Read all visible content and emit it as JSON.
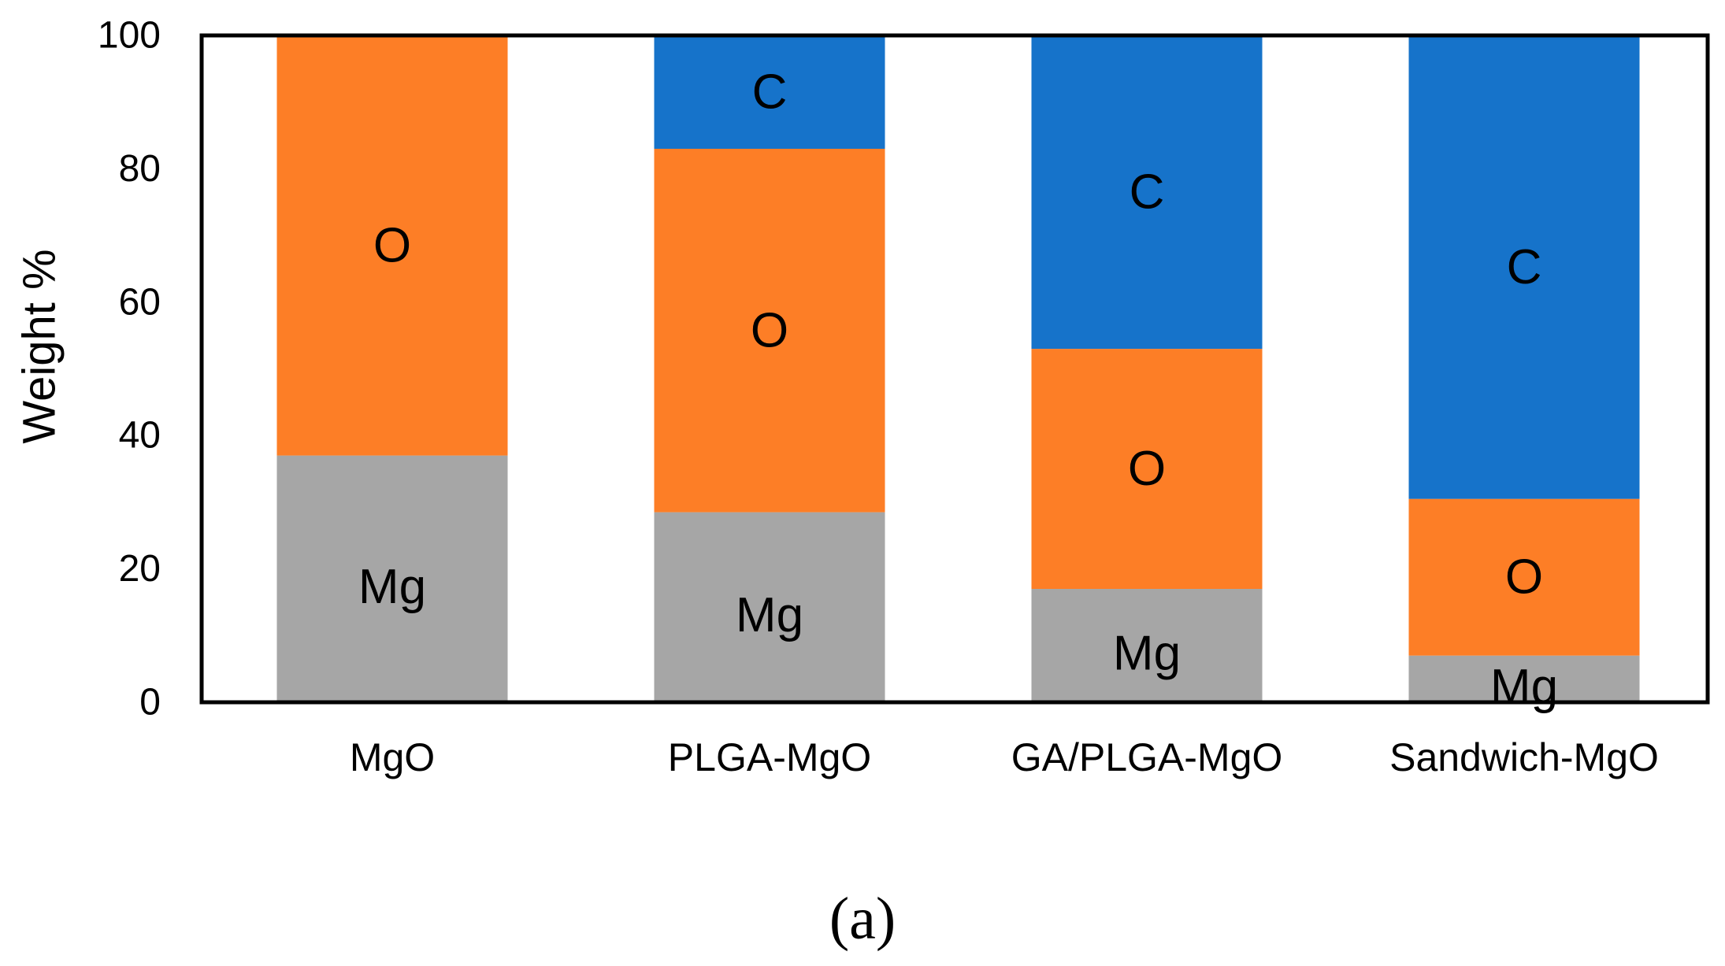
{
  "chart_data": {
    "type": "bar",
    "stacked": true,
    "title": "",
    "xlabel": "",
    "ylabel": "Weight %",
    "ylim": [
      0,
      100
    ],
    "yticks": [
      "0",
      "20",
      "40",
      "60",
      "80",
      "100"
    ],
    "grid": false,
    "categories": [
      "MgO",
      "PLGA-MgO",
      "GA/PLGA-MgO",
      "Sandwich-MgO"
    ],
    "series": [
      {
        "name": "Mg",
        "color": "#A6A6A6",
        "values": [
          37,
          28.5,
          17,
          7
        ]
      },
      {
        "name": "O",
        "color": "#FD7E26",
        "values": [
          63,
          54.5,
          36,
          23.5
        ]
      },
      {
        "name": "C",
        "color": "#1673CA",
        "values": [
          0,
          17,
          47,
          69.5
        ]
      }
    ],
    "segment_labels": [
      [
        "Mg",
        "O",
        ""
      ],
      [
        "Mg",
        "O",
        "C"
      ],
      [
        "Mg",
        "O",
        "C"
      ],
      [
        "Mg",
        "O",
        "C"
      ]
    ],
    "panel_label": "(a)"
  }
}
